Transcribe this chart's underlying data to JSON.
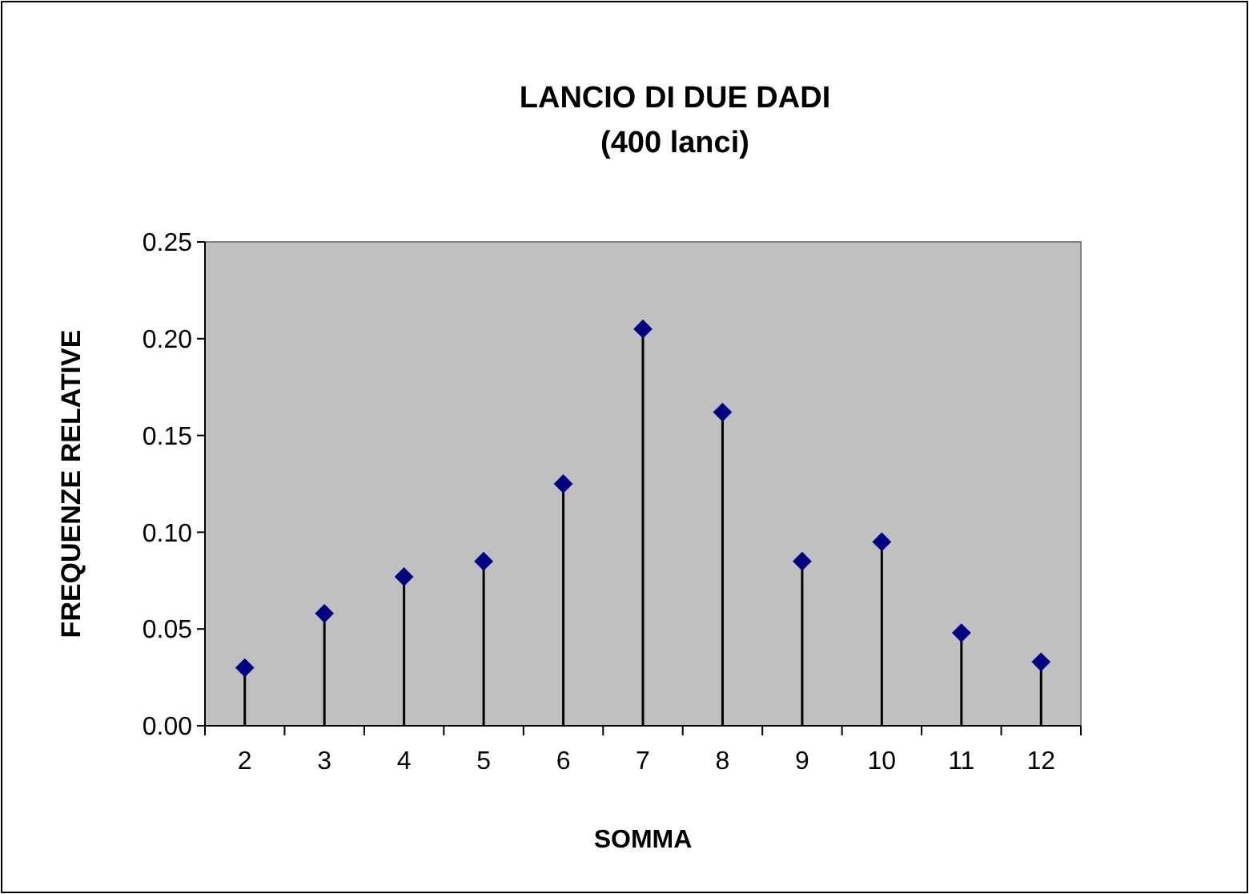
{
  "chart_data": {
    "type": "lollipop",
    "title": "LANCIO DI DUE DADI",
    "subtitle": "(400 lanci)",
    "xlabel": "SOMMA",
    "ylabel": "FREQUENZE RELATIVE",
    "categories": [
      "2",
      "3",
      "4",
      "5",
      "6",
      "7",
      "8",
      "9",
      "10",
      "11",
      "12"
    ],
    "values": [
      0.03,
      0.058,
      0.077,
      0.085,
      0.125,
      0.205,
      0.162,
      0.085,
      0.095,
      0.048,
      0.033
    ],
    "color": "#000080",
    "marker": "diamond",
    "ylim": [
      0,
      0.25
    ],
    "yticks": [
      {
        "value": 0,
        "label": "0.00"
      },
      {
        "value": 0.05,
        "label": "0.05"
      },
      {
        "value": 0.1,
        "label": "0.10"
      },
      {
        "value": 0.15,
        "label": "0.15"
      },
      {
        "value": 0.2,
        "label": "0.20"
      },
      {
        "value": 0.25,
        "label": "0.25"
      }
    ],
    "legend": false
  }
}
